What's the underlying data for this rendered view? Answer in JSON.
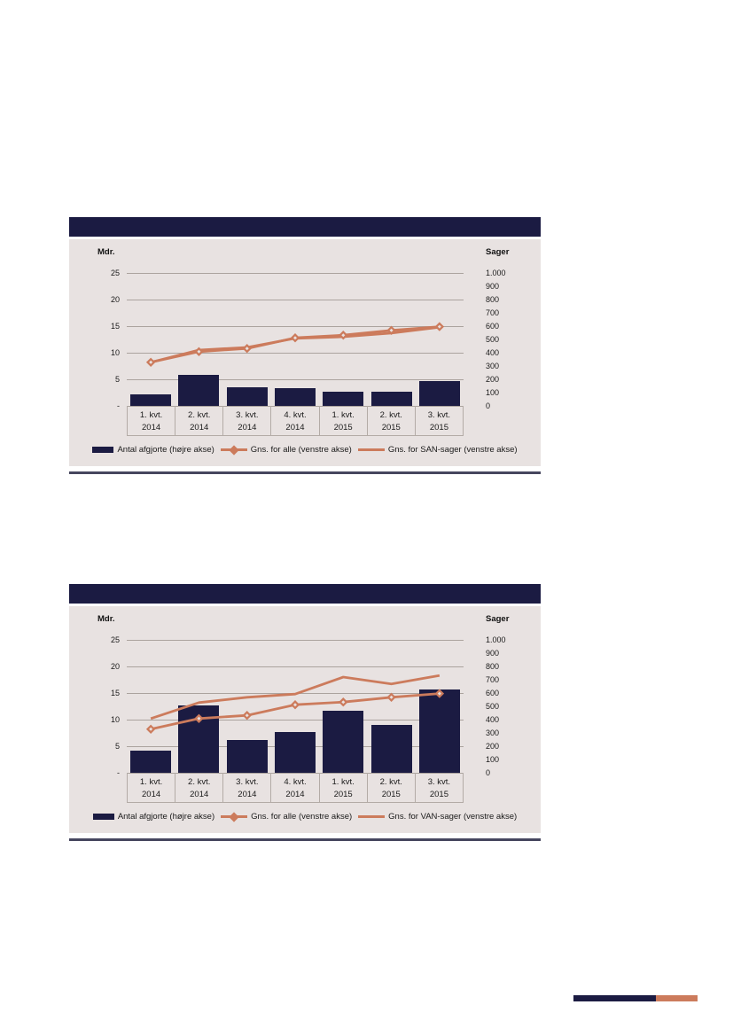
{
  "colors": {
    "navy": "#1b1b42",
    "orange": "#cc7b5c",
    "chart_background": "#e8e2e1",
    "gridline": "#aba39e",
    "label_border": "#b3aba6",
    "bottom_rule": "#46465e",
    "page_background": "#ffffff",
    "text": "#1a1a1a"
  },
  "footer_mark": {
    "segments": [
      {
        "name": "navy-bar",
        "color": "#1b1b42"
      },
      {
        "name": "orange-bar",
        "color": "#cc7b5c"
      }
    ]
  },
  "chart_data": [
    {
      "type": "bar",
      "subtype": "bar+line combo, dual axis",
      "title": "",
      "grid": "on",
      "legend_position": "bottom",
      "left_axis": {
        "title": "Mdr.",
        "ticks": [
          "25",
          "20",
          "15",
          "10",
          "5",
          "-"
        ],
        "tick_values": [
          25,
          20,
          15,
          10,
          5,
          0
        ],
        "range": [
          0,
          25
        ]
      },
      "right_axis": {
        "title": "Sager",
        "ticks": [
          "1.000",
          "900",
          "800",
          "700",
          "600",
          "500",
          "400",
          "300",
          "200",
          "100",
          "0"
        ],
        "tick_values": [
          1000,
          900,
          800,
          700,
          600,
          500,
          400,
          300,
          200,
          100,
          0
        ],
        "range": [
          0,
          1000
        ]
      },
      "categories": [
        [
          "1. kvt.",
          "2014"
        ],
        [
          "2. kvt.",
          "2014"
        ],
        [
          "3. kvt.",
          "2014"
        ],
        [
          "4. kvt.",
          "2014"
        ],
        [
          "1. kvt.",
          "2015"
        ],
        [
          "2. kvt.",
          "2015"
        ],
        [
          "3. kvt.",
          "2015"
        ]
      ],
      "bars": {
        "label": "Antal afgjorte (højre akse)",
        "axis": "right",
        "values": [
          85,
          235,
          140,
          135,
          110,
          105,
          190
        ]
      },
      "lines": [
        {
          "label": "Gns. for alle (venstre akse)",
          "axis": "left",
          "marker": "diamond",
          "values": [
            8.2,
            10.2,
            10.8,
            12.8,
            13.3,
            14.2,
            14.9
          ]
        },
        {
          "label": "Gns. for SAN-sager (venstre akse)",
          "axis": "left",
          "marker": "none",
          "values": [
            8.2,
            10.5,
            11.0,
            12.7,
            13.0,
            13.7,
            14.8
          ]
        }
      ]
    },
    {
      "type": "bar",
      "subtype": "bar+line combo, dual axis",
      "title": "",
      "grid": "on",
      "legend_position": "bottom",
      "left_axis": {
        "title": "Mdr.",
        "ticks": [
          "25",
          "20",
          "15",
          "10",
          "5",
          "-"
        ],
        "tick_values": [
          25,
          20,
          15,
          10,
          5,
          0
        ],
        "range": [
          0,
          25
        ]
      },
      "right_axis": {
        "title": "Sager",
        "ticks": [
          "1.000",
          "900",
          "800",
          "700",
          "600",
          "500",
          "400",
          "300",
          "200",
          "100",
          "0"
        ],
        "tick_values": [
          1000,
          900,
          800,
          700,
          600,
          500,
          400,
          300,
          200,
          100,
          0
        ],
        "range": [
          0,
          1000
        ]
      },
      "categories": [
        [
          "1. kvt.",
          "2014"
        ],
        [
          "2. kvt.",
          "2014"
        ],
        [
          "3. kvt.",
          "2014"
        ],
        [
          "4. kvt.",
          "2014"
        ],
        [
          "1. kvt.",
          "2015"
        ],
        [
          "2. kvt.",
          "2015"
        ],
        [
          "3. kvt.",
          "2015"
        ]
      ],
      "bars": {
        "label": "Antal afgjorte (højre akse)",
        "axis": "right",
        "values": [
          170,
          510,
          250,
          310,
          465,
          360,
          625
        ]
      },
      "lines": [
        {
          "label": "Gns. for alle (venstre akse)",
          "axis": "left",
          "marker": "diamond",
          "values": [
            8.2,
            10.2,
            10.8,
            12.8,
            13.3,
            14.2,
            14.9
          ]
        },
        {
          "label": "Gns. for VAN-sager (venstre akse)",
          "axis": "left",
          "marker": "none",
          "values": [
            10.2,
            13.2,
            14.2,
            14.8,
            18.0,
            16.7,
            18.3
          ]
        }
      ]
    }
  ]
}
